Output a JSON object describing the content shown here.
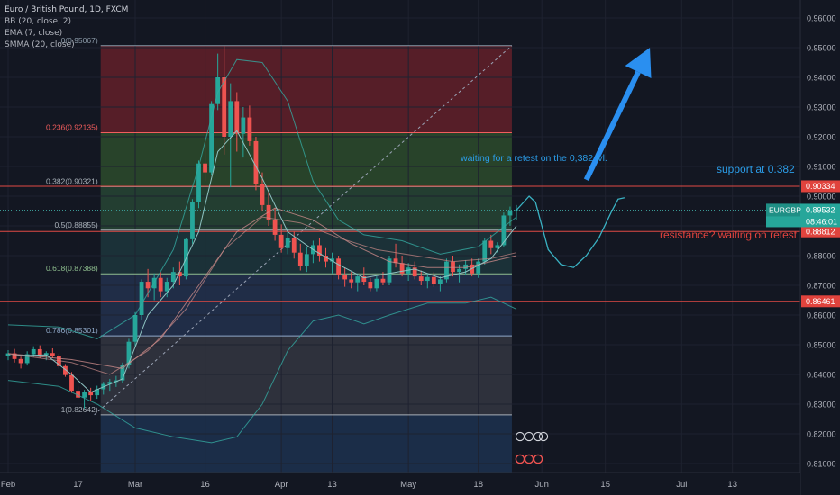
{
  "legend": {
    "symbol": "Euro / British Pound, 1D, FXCM",
    "bb": "BB (20, close, 2)",
    "ema": "EMA (7, close)",
    "smma": "SMMA (20, close)"
  },
  "colors": {
    "background": "#131722",
    "up": "#26a69a",
    "down": "#ef5350",
    "arrow": "#2a8ff0",
    "text_blue": "#2b9de8",
    "text_red": "#e4433d",
    "bb": "#35a9a0",
    "ema": "#8ec3c2",
    "smma": "#c98a88"
  },
  "chart_data": {
    "type": "candlestick",
    "ylim": [
      0.8025,
      0.965
    ],
    "y_ticks": [
      "0.96000",
      "0.95000",
      "0.94000",
      "0.93000",
      "0.92000",
      "0.91000",
      "0.90000",
      "0.89000",
      "0.88000",
      "0.87000",
      "0.86000",
      "0.85000",
      "0.84000",
      "0.83000",
      "0.82000",
      "0.81000"
    ],
    "x_labels": [
      {
        "label": "Feb",
        "i": 0
      },
      {
        "label": "17",
        "i": 11
      },
      {
        "label": "Mar",
        "i": 20
      },
      {
        "label": "16",
        "i": 31
      },
      {
        "label": "Apr",
        "i": 43
      },
      {
        "label": "13",
        "i": 51
      },
      {
        "label": "May",
        "i": 63
      },
      {
        "label": "18",
        "i": 74
      },
      {
        "label": "Jun",
        "i": 84
      },
      {
        "label": "15",
        "i": 94
      },
      {
        "label": "Jul",
        "i": 106
      },
      {
        "label": "13",
        "i": 114
      }
    ],
    "fib_levels": [
      {
        "label": "0(0.95067)",
        "value": 0.95067,
        "color": "#8b9aa8"
      },
      {
        "label": "0.236(0.92135)",
        "value": 0.92135,
        "color": "#f25d5d"
      },
      {
        "label": "0.382(0.90321)",
        "value": 0.90321,
        "color": "#a8b0b8"
      },
      {
        "label": "0.5(0.88855)",
        "value": 0.88855,
        "color": "#a8b0b8"
      },
      {
        "label": "0.618(0.87388)",
        "value": 0.87388,
        "color": "#8fbf8f"
      },
      {
        "label": "0.786(0.85301)",
        "value": 0.85301,
        "color": "#8fa8c8"
      },
      {
        "label": "1(0.82642)",
        "value": 0.82642,
        "color": "#a8b0b8"
      }
    ],
    "fib_x_range": [
      14,
      79
    ],
    "h_lines": [
      {
        "value": 0.90334,
        "label": "0.90334"
      },
      {
        "value": 0.88812,
        "label": "0.88812"
      },
      {
        "value": 0.86461,
        "label": "0.86461"
      }
    ],
    "current": {
      "label": "EURGBP",
      "value": 0.89532,
      "price": "0.89532",
      "countdown": "08:46:01"
    },
    "annotations": {
      "retest": "waiting for a retest on the 0,382 lvl.",
      "support": "support at 0.382",
      "resistance": "resistance? waiting on retest"
    },
    "candles": [
      [
        0.8462,
        0.8482,
        0.8448,
        0.8471
      ],
      [
        0.8471,
        0.8486,
        0.844,
        0.8452
      ],
      [
        0.8452,
        0.846,
        0.842,
        0.8438
      ],
      [
        0.8438,
        0.8478,
        0.843,
        0.8468
      ],
      [
        0.8468,
        0.8495,
        0.8458,
        0.8485
      ],
      [
        0.8485,
        0.8498,
        0.8455,
        0.8465
      ],
      [
        0.8465,
        0.8478,
        0.8448,
        0.8472
      ],
      [
        0.8472,
        0.8488,
        0.8455,
        0.8462
      ],
      [
        0.8462,
        0.847,
        0.842,
        0.8428
      ],
      [
        0.8428,
        0.8435,
        0.8392,
        0.8398
      ],
      [
        0.8398,
        0.8408,
        0.8338,
        0.8345
      ],
      [
        0.8345,
        0.836,
        0.8318,
        0.8322
      ],
      [
        0.8322,
        0.8348,
        0.8285,
        0.834
      ],
      [
        0.834,
        0.8355,
        0.831,
        0.833
      ],
      [
        0.833,
        0.8362,
        0.8318,
        0.835
      ],
      [
        0.835,
        0.8375,
        0.8332,
        0.8368
      ],
      [
        0.8368,
        0.8385,
        0.8345,
        0.8375
      ],
      [
        0.8375,
        0.8395,
        0.8358,
        0.838
      ],
      [
        0.838,
        0.844,
        0.837,
        0.8432
      ],
      [
        0.8432,
        0.852,
        0.842,
        0.851
      ],
      [
        0.851,
        0.861,
        0.8495,
        0.86
      ],
      [
        0.86,
        0.872,
        0.8585,
        0.8712
      ],
      [
        0.8712,
        0.8755,
        0.866,
        0.869
      ],
      [
        0.869,
        0.874,
        0.865,
        0.8725
      ],
      [
        0.8725,
        0.8745,
        0.866,
        0.868
      ],
      [
        0.868,
        0.8725,
        0.866,
        0.8712
      ],
      [
        0.8712,
        0.876,
        0.869,
        0.8745
      ],
      [
        0.8745,
        0.878,
        0.87,
        0.873
      ],
      [
        0.873,
        0.886,
        0.872,
        0.8855
      ],
      [
        0.8855,
        0.899,
        0.884,
        0.898
      ],
      [
        0.898,
        0.912,
        0.896,
        0.911
      ],
      [
        0.911,
        0.9185,
        0.905,
        0.908
      ],
      [
        0.908,
        0.932,
        0.907,
        0.931
      ],
      [
        0.931,
        0.948,
        0.929,
        0.94
      ],
      [
        0.94,
        0.9505,
        0.914,
        0.92
      ],
      [
        0.92,
        0.938,
        0.903,
        0.932
      ],
      [
        0.932,
        0.935,
        0.915,
        0.921
      ],
      [
        0.921,
        0.93,
        0.913,
        0.9265
      ],
      [
        0.9265,
        0.9305,
        0.917,
        0.9185
      ],
      [
        0.9185,
        0.92,
        0.902,
        0.904
      ],
      [
        0.904,
        0.908,
        0.895,
        0.897
      ],
      [
        0.897,
        0.902,
        0.89,
        0.892
      ],
      [
        0.892,
        0.896,
        0.885,
        0.887
      ],
      [
        0.887,
        0.8905,
        0.881,
        0.8825
      ],
      [
        0.8825,
        0.8895,
        0.8805,
        0.886
      ],
      [
        0.886,
        0.888,
        0.879,
        0.881
      ],
      [
        0.881,
        0.884,
        0.875,
        0.8765
      ],
      [
        0.8765,
        0.883,
        0.8745,
        0.8805
      ],
      [
        0.8805,
        0.885,
        0.8775,
        0.8835
      ],
      [
        0.8835,
        0.886,
        0.878,
        0.88
      ],
      [
        0.88,
        0.8825,
        0.876,
        0.878
      ],
      [
        0.878,
        0.881,
        0.874,
        0.879
      ],
      [
        0.879,
        0.88,
        0.872,
        0.8735
      ],
      [
        0.8735,
        0.876,
        0.8695,
        0.872
      ],
      [
        0.872,
        0.8745,
        0.869,
        0.871
      ],
      [
        0.871,
        0.874,
        0.868,
        0.873
      ],
      [
        0.873,
        0.876,
        0.87,
        0.8712
      ],
      [
        0.8712,
        0.8725,
        0.868,
        0.869
      ],
      [
        0.869,
        0.873,
        0.868,
        0.8722
      ],
      [
        0.8722,
        0.8745,
        0.87,
        0.871
      ],
      [
        0.871,
        0.88,
        0.87,
        0.879
      ],
      [
        0.879,
        0.884,
        0.876,
        0.8775
      ],
      [
        0.8775,
        0.88,
        0.873,
        0.874
      ],
      [
        0.874,
        0.8775,
        0.8715,
        0.876
      ],
      [
        0.876,
        0.878,
        0.872,
        0.873
      ],
      [
        0.873,
        0.875,
        0.87,
        0.8715
      ],
      [
        0.8715,
        0.874,
        0.869,
        0.8728
      ],
      [
        0.8728,
        0.8745,
        0.8695,
        0.8705
      ],
      [
        0.8705,
        0.873,
        0.868,
        0.872
      ],
      [
        0.872,
        0.879,
        0.871,
        0.878
      ],
      [
        0.878,
        0.88,
        0.873,
        0.8745
      ],
      [
        0.8745,
        0.877,
        0.871,
        0.8755
      ],
      [
        0.8755,
        0.8785,
        0.8735,
        0.877
      ],
      [
        0.877,
        0.879,
        0.873,
        0.874
      ],
      [
        0.874,
        0.879,
        0.8725,
        0.878
      ],
      [
        0.878,
        0.886,
        0.877,
        0.885
      ],
      [
        0.885,
        0.887,
        0.8805,
        0.8825
      ],
      [
        0.8825,
        0.8845,
        0.881,
        0.8835
      ],
      [
        0.8835,
        0.8945,
        0.883,
        0.8935
      ],
      [
        0.8935,
        0.8965,
        0.89,
        0.895
      ],
      [
        0.895,
        0.897,
        0.892,
        0.8953
      ]
    ],
    "ema": [
      [
        0,
        0.8462
      ],
      [
        6,
        0.8466
      ],
      [
        10,
        0.84
      ],
      [
        13,
        0.834
      ],
      [
        18,
        0.8385
      ],
      [
        22,
        0.86
      ],
      [
        26,
        0.87
      ],
      [
        30,
        0.888
      ],
      [
        33,
        0.915
      ],
      [
        36,
        0.922
      ],
      [
        40,
        0.906
      ],
      [
        44,
        0.888
      ],
      [
        48,
        0.882
      ],
      [
        52,
        0.877
      ],
      [
        56,
        0.8725
      ],
      [
        60,
        0.874
      ],
      [
        64,
        0.8755
      ],
      [
        68,
        0.8725
      ],
      [
        72,
        0.8745
      ],
      [
        76,
        0.879
      ],
      [
        80,
        0.89
      ]
    ],
    "smma": [
      [
        0,
        0.847
      ],
      [
        10,
        0.844
      ],
      [
        16,
        0.84
      ],
      [
        22,
        0.848
      ],
      [
        28,
        0.862
      ],
      [
        34,
        0.882
      ],
      [
        40,
        0.893
      ],
      [
        46,
        0.891
      ],
      [
        52,
        0.886
      ],
      [
        58,
        0.882
      ],
      [
        64,
        0.88
      ],
      [
        70,
        0.878
      ],
      [
        76,
        0.879
      ],
      [
        80,
        0.881
      ]
    ],
    "bb_upper": [
      [
        0,
        0.8567
      ],
      [
        8,
        0.856
      ],
      [
        14,
        0.852
      ],
      [
        20,
        0.86
      ],
      [
        26,
        0.882
      ],
      [
        30,
        0.91
      ],
      [
        33,
        0.935
      ],
      [
        36,
        0.946
      ],
      [
        40,
        0.945
      ],
      [
        44,
        0.932
      ],
      [
        48,
        0.905
      ],
      [
        52,
        0.892
      ],
      [
        56,
        0.887
      ],
      [
        62,
        0.885
      ],
      [
        68,
        0.8805
      ],
      [
        74,
        0.883
      ],
      [
        80,
        0.893
      ]
    ],
    "bb_mid": [
      [
        0,
        0.847
      ],
      [
        10,
        0.845
      ],
      [
        18,
        0.842
      ],
      [
        24,
        0.852
      ],
      [
        30,
        0.87
      ],
      [
        36,
        0.888
      ],
      [
        42,
        0.896
      ],
      [
        48,
        0.892
      ],
      [
        54,
        0.884
      ],
      [
        60,
        0.878
      ],
      [
        66,
        0.876
      ],
      [
        72,
        0.876
      ],
      [
        80,
        0.88
      ]
    ],
    "bb_lower": [
      [
        0,
        0.838
      ],
      [
        8,
        0.836
      ],
      [
        14,
        0.83
      ],
      [
        20,
        0.822
      ],
      [
        26,
        0.819
      ],
      [
        32,
        0.817
      ],
      [
        36,
        0.819
      ],
      [
        40,
        0.83
      ],
      [
        44,
        0.848
      ],
      [
        48,
        0.858
      ],
      [
        52,
        0.86
      ],
      [
        56,
        0.857
      ],
      [
        60,
        0.86
      ],
      [
        66,
        0.864
      ],
      [
        72,
        0.864
      ],
      [
        76,
        0.866
      ],
      [
        80,
        0.862
      ]
    ],
    "projection": [
      [
        80,
        0.8953
      ],
      [
        82,
        0.9
      ],
      [
        83,
        0.898
      ],
      [
        84,
        0.89
      ],
      [
        85,
        0.882
      ],
      [
        87,
        0.877
      ],
      [
        89,
        0.876
      ],
      [
        91,
        0.88
      ],
      [
        93,
        0.886
      ],
      [
        95,
        0.895
      ],
      [
        96,
        0.899
      ],
      [
        97,
        0.8995
      ]
    ],
    "diagonal": [
      [
        13,
        0.8264
      ],
      [
        79,
        0.9507
      ]
    ],
    "arrow": [
      [
        91,
        0.9055
      ],
      [
        101,
        0.95
      ]
    ]
  }
}
